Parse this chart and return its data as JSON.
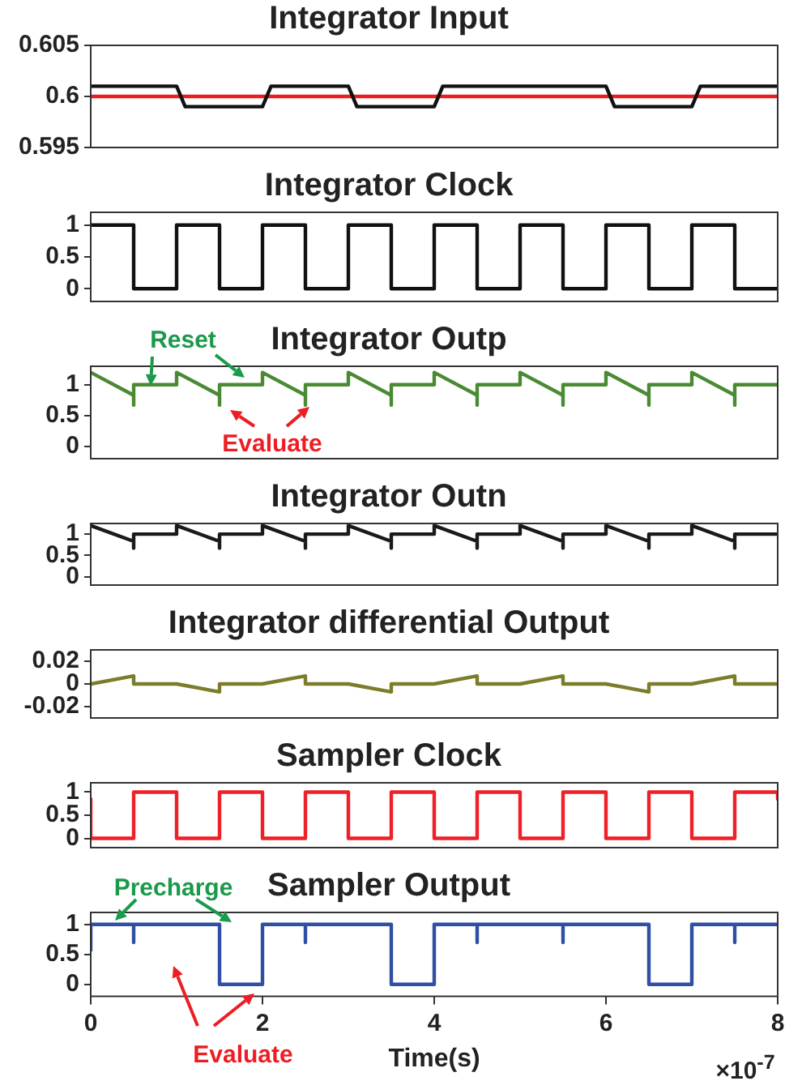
{
  "chart_data": [
    {
      "type": "line",
      "title": "Integrator Input",
      "xlim": [
        0,
        8
      ],
      "xticks": [
        0,
        2,
        4,
        6,
        8
      ],
      "ylim": [
        0.595,
        0.605
      ],
      "yticks": [
        0.595,
        {
          "value": 0.6,
          "label": "0.6"
        },
        0.605
      ],
      "tick_labels": "y",
      "series": [
        {
          "color": "#111111",
          "x": [
            0,
            1,
            1.1,
            2,
            2.1,
            3,
            3.1,
            4,
            4.1,
            6,
            6.1,
            7,
            7.1,
            8
          ],
          "values": [
            0.601,
            0.601,
            0.599,
            0.599,
            0.601,
            0.601,
            0.599,
            0.599,
            0.601,
            0.601,
            0.599,
            0.599,
            0.601,
            0.601
          ]
        },
        {
          "color": "#ee1c1c",
          "x": [
            0,
            8
          ],
          "values": [
            0.6,
            0.6
          ]
        }
      ]
    },
    {
      "type": "line",
      "title": "Integrator Clock",
      "xlim": [
        0,
        8
      ],
      "xticks": [
        0,
        2,
        4,
        6,
        8
      ],
      "ylim": [
        -0.2,
        1.2
      ],
      "yticks": [
        0,
        0.5,
        1
      ],
      "tick_labels": "y",
      "series": [
        {
          "color": "#111111",
          "x": [
            0,
            0.5,
            0.5,
            1,
            1,
            1.5,
            1.5,
            2,
            2,
            2.5,
            2.5,
            3,
            3,
            3.5,
            3.5,
            4,
            4,
            4.5,
            4.5,
            5,
            5,
            5.5,
            5.5,
            6,
            6,
            6.5,
            6.5,
            7,
            7,
            7.5,
            7.5,
            8
          ],
          "values": [
            1,
            1,
            0,
            0,
            1,
            1,
            0,
            0,
            1,
            1,
            0,
            0,
            1,
            1,
            0,
            0,
            1,
            1,
            0,
            0,
            1,
            1,
            0,
            0,
            1,
            1,
            0,
            0,
            1,
            1,
            0,
            0
          ]
        }
      ]
    },
    {
      "type": "line",
      "title": "Integrator Outp",
      "xlim": [
        0,
        8
      ],
      "xticks": [
        0,
        2,
        4,
        6,
        8
      ],
      "ylim": [
        -0.2,
        1.3
      ],
      "yticks": [
        0,
        0.5,
        1
      ],
      "tick_labels": "y",
      "annotations": [
        "Reset",
        "Evaluate"
      ],
      "series": [
        {
          "color": "#4a8a32",
          "x": [
            0,
            0.5,
            0.5,
            0.5,
            1,
            1,
            1.5,
            1.5,
            1.5,
            2,
            2,
            2.5,
            2.5,
            2.5,
            3,
            3,
            3.5,
            3.5,
            3.5,
            4,
            4,
            4.5,
            4.5,
            4.5,
            5,
            5,
            5.5,
            5.5,
            5.5,
            6,
            6,
            6.5,
            6.5,
            6.5,
            7,
            7,
            7.5,
            7.5,
            7.5,
            8
          ],
          "values": [
            1.2,
            0.83,
            0.67,
            1,
            1,
            1.2,
            0.83,
            0.67,
            1,
            1,
            1.2,
            0.83,
            0.67,
            1,
            1,
            1.2,
            0.83,
            0.67,
            1,
            1,
            1.2,
            0.83,
            0.67,
            1,
            1,
            1.2,
            0.83,
            0.67,
            1,
            1,
            1.2,
            0.83,
            0.67,
            1,
            1,
            1.2,
            0.83,
            0.67,
            1,
            1
          ]
        }
      ]
    },
    {
      "type": "line",
      "title": "Integrator Outn",
      "xlim": [
        0,
        8
      ],
      "xticks": [
        0,
        2,
        4,
        6,
        8
      ],
      "ylim": [
        -0.2,
        1.25
      ],
      "yticks": [
        0,
        0.5,
        1
      ],
      "tick_labels": "y",
      "series": [
        {
          "color": "#1a1a1a",
          "x": [
            0,
            0.5,
            0.5,
            0.5,
            1,
            1,
            1.5,
            1.5,
            1.5,
            2,
            2,
            2.5,
            2.5,
            2.5,
            3,
            3,
            3.5,
            3.5,
            3.5,
            4,
            4,
            4.5,
            4.5,
            4.5,
            5,
            5,
            5.5,
            5.5,
            5.5,
            6,
            6,
            6.5,
            6.5,
            6.5,
            7,
            7,
            7.5,
            7.5,
            7.5,
            8
          ],
          "values": [
            1.2,
            0.83,
            0.67,
            1,
            1,
            1.2,
            0.83,
            0.67,
            1,
            1,
            1.2,
            0.83,
            0.67,
            1,
            1,
            1.2,
            0.83,
            0.67,
            1,
            1,
            1.2,
            0.83,
            0.67,
            1,
            1,
            1.2,
            0.83,
            0.67,
            1,
            1,
            1.2,
            0.83,
            0.67,
            1,
            1,
            1.2,
            0.83,
            0.67,
            1,
            1
          ]
        }
      ]
    },
    {
      "type": "line",
      "title": "Integrator differential Output",
      "xlim": [
        0,
        8
      ],
      "xticks": [
        0,
        2,
        4,
        6,
        8
      ],
      "ylim": [
        -0.03,
        0.03
      ],
      "yticks": [
        -0.02,
        0,
        0.02
      ],
      "tick_labels": "y",
      "series": [
        {
          "color": "#7b7d2a",
          "x": [
            0,
            0.5,
            0.5,
            1,
            1.5,
            1.5,
            2,
            2.5,
            2.5,
            3,
            3.5,
            3.5,
            4,
            4.5,
            4.5,
            5,
            5.5,
            5.5,
            6,
            6.5,
            6.5,
            7,
            7.5,
            7.5,
            8
          ],
          "values": [
            0,
            0.007,
            0,
            0,
            -0.007,
            0,
            0,
            0.007,
            0,
            0,
            -0.007,
            0,
            0,
            0.007,
            0,
            0,
            0.007,
            0,
            0,
            -0.007,
            0,
            0,
            0.007,
            0,
            0
          ]
        }
      ]
    },
    {
      "type": "line",
      "title": "Sampler Clock",
      "xlim": [
        0,
        8
      ],
      "xticks": [
        0,
        2,
        4,
        6,
        8
      ],
      "ylim": [
        -0.2,
        1.2
      ],
      "yticks": [
        0,
        0.5,
        1
      ],
      "tick_labels": "y",
      "series": [
        {
          "color": "#ee2028",
          "x": [
            0,
            0,
            0.5,
            0.5,
            1,
            1,
            1.5,
            1.5,
            2,
            2,
            2.5,
            2.5,
            3,
            3,
            3.5,
            3.5,
            4,
            4,
            4.5,
            4.5,
            5,
            5,
            5.5,
            5.5,
            6,
            6,
            6.5,
            6.5,
            7,
            7,
            7.5,
            7.5,
            8,
            8
          ],
          "values": [
            0.85,
            0,
            0,
            1,
            1,
            0,
            0,
            1,
            1,
            0,
            0,
            1,
            1,
            0,
            0,
            1,
            1,
            0,
            0,
            1,
            1,
            0,
            0,
            1,
            1,
            0,
            0,
            1,
            1,
            0,
            0,
            1,
            1,
            0.85
          ]
        }
      ]
    },
    {
      "type": "line",
      "title": "Sampler Output",
      "xlabel": "Time(s)",
      "xlim": [
        0,
        8
      ],
      "xticks": [
        0,
        2,
        4,
        6,
        8
      ],
      "ylim": [
        -0.2,
        1.2
      ],
      "yticks": [
        0,
        0.5,
        1
      ],
      "annotations": [
        "Precharge",
        "Evaluate",
        "×10$^{-7}$"
      ],
      "series": [
        {
          "color": "#2f4fa5",
          "x": [
            0,
            0,
            0.5,
            0.5,
            0.5,
            1.5,
            1.5,
            2,
            2,
            2.5,
            2.5,
            2.5,
            3.5,
            3.5,
            4,
            4,
            4.5,
            4.5,
            4.5,
            5.5,
            5.5,
            5.5,
            6.5,
            6.5,
            7,
            7,
            7.5,
            7.5,
            7.5,
            8
          ],
          "values": [
            0.55,
            1,
            1,
            0.7,
            1,
            1,
            0,
            0,
            1,
            1,
            0.7,
            1,
            1,
            0,
            0,
            1,
            1,
            0.7,
            1,
            1,
            0.7,
            1,
            1,
            0,
            0,
            1,
            1,
            0.7,
            1,
            1
          ]
        }
      ]
    }
  ]
}
